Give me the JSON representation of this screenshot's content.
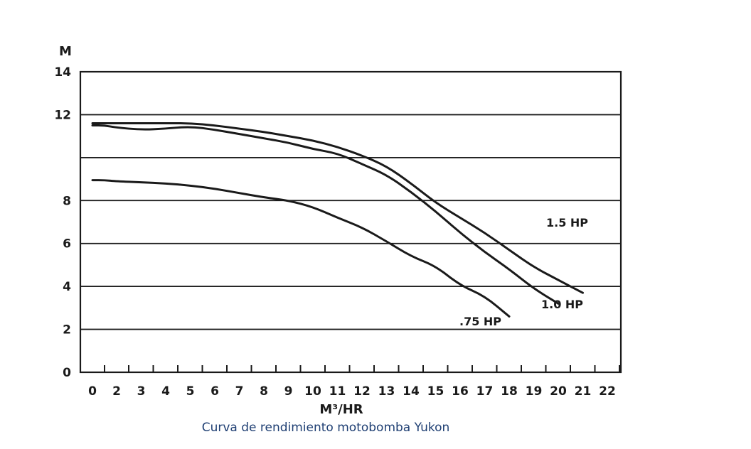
{
  "caption": "Curva de rendimiento motobomba Yukon",
  "chart_data": {
    "type": "line",
    "title": "",
    "xlabel": "M³/HR",
    "ylabel": "M",
    "x_ticks": [
      "0",
      "2",
      "3",
      "4",
      "5",
      "6",
      "7",
      "8",
      "9",
      "10",
      "11",
      "12",
      "13",
      "14",
      "15",
      "16",
      "17",
      "18",
      "19",
      "20",
      "21",
      "22"
    ],
    "y_ticks": [
      "0",
      "2",
      "4",
      "6",
      "8",
      "12",
      "14"
    ],
    "ylim": [
      0,
      14
    ],
    "grid": "horizontal",
    "series": [
      {
        "name": "1.5 HP",
        "color": "#1a1a1a",
        "x": [
          0,
          1,
          2,
          3,
          4,
          5,
          6,
          7,
          8,
          9,
          10,
          11,
          12,
          13,
          14,
          15,
          16,
          17,
          18,
          19,
          20,
          21
        ],
        "y": [
          11.6,
          11.6,
          11.6,
          11.6,
          11.6,
          11.6,
          11.5,
          11.35,
          11.2,
          11.0,
          10.8,
          10.5,
          10.1,
          9.6,
          8.8,
          7.9,
          7.2,
          6.5,
          5.7,
          4.9,
          4.3,
          3.7
        ]
      },
      {
        "name": "1.0 HP",
        "color": "#1a1a1a",
        "x": [
          0,
          1,
          2,
          3,
          4,
          5,
          6,
          7,
          8,
          9,
          10,
          11,
          12,
          13,
          14,
          15,
          16,
          17,
          18,
          19,
          20
        ],
        "y": [
          11.5,
          11.5,
          11.4,
          11.3,
          11.35,
          11.45,
          11.3,
          11.1,
          10.9,
          10.7,
          10.4,
          10.2,
          9.7,
          9.2,
          8.4,
          7.5,
          6.5,
          5.6,
          4.8,
          3.9,
          3.2
        ]
      },
      {
        "name": ".75 HP",
        "color": "#1a1a1a",
        "x": [
          0,
          1,
          2,
          3,
          4,
          5,
          6,
          7,
          8,
          9,
          10,
          11,
          12,
          13,
          14,
          15,
          16,
          17,
          18
        ],
        "y": [
          8.95,
          8.95,
          8.9,
          8.85,
          8.8,
          8.7,
          8.55,
          8.35,
          8.15,
          8.0,
          7.7,
          7.2,
          6.75,
          6.1,
          5.4,
          4.95,
          4.05,
          3.55,
          2.6
        ]
      }
    ]
  }
}
